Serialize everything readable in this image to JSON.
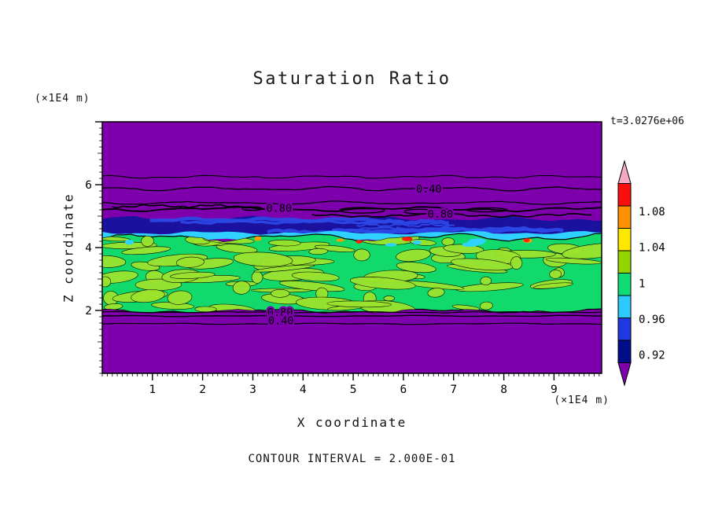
{
  "chart_data": {
    "type": "heatmap",
    "title": "Saturation Ratio",
    "xlabel": "X coordinate",
    "ylabel": "Z coordinate",
    "x_unit_label": "(×1E4 m)",
    "y_unit_label": "(×1E4 m)",
    "time_label": "t=3.0276e+06",
    "footer_label": "CONTOUR INTERVAL = 2.000E-01",
    "x_ticks": [
      "1",
      "2",
      "3",
      "4",
      "5",
      "6",
      "7",
      "8",
      "9"
    ],
    "y_ticks": [
      "2",
      "4",
      "6"
    ],
    "x_range": [
      0,
      9.95
    ],
    "y_range": [
      0,
      8
    ],
    "x_minor_step": 0.1,
    "y_minor_step": 0.2,
    "seed": 20,
    "field": {
      "background": "#7e00ad",
      "navy_band": {
        "y0": 0.386,
        "y1": 0.447,
        "color": "#1a119e"
      },
      "blue_streaks": {
        "color": "#2c49e8",
        "count": 8
      },
      "cyan_band": {
        "y0": 0.441,
        "y1": 0.473,
        "color": "#2ed1ff"
      },
      "green_band": {
        "y0": 0.46,
        "y1": 0.752,
        "color": "#12d96b"
      },
      "blob_color": "#9be32e",
      "blob_count": 90,
      "cyan_blob_count": 6,
      "speck_colors": [
        "#ff2000",
        "#ff9c00"
      ],
      "speck_count": 6,
      "contour_color": "#000000"
    },
    "contours": [
      {
        "y": 0.219,
        "amp": 2.0,
        "w": 1.1
      },
      {
        "y": 0.266,
        "amp": 2.6,
        "w": 1.3
      },
      {
        "y": 0.322,
        "amp": 2.0,
        "w": 1.2
      },
      {
        "y": 0.335,
        "amp": 2.0,
        "w": 1.6,
        "x0": 0.02,
        "x1": 0.3
      },
      {
        "y": 0.347,
        "amp": 3.0,
        "w": 1.8
      },
      {
        "y": 0.372,
        "amp": 2.4,
        "w": 1.6,
        "x0": 0.42,
        "x1": 0.98
      },
      {
        "y": 0.757,
        "amp": 0.8,
        "w": 1.2
      },
      {
        "y": 0.772,
        "amp": 0.8,
        "w": 1.4
      },
      {
        "y": 0.803,
        "amp": 0.8,
        "w": 1.2
      }
    ],
    "loops": [
      {
        "x": 0.52,
        "y": 0.352,
        "rx": 0.045,
        "ry": 0.011
      },
      {
        "x": 0.635,
        "y": 0.357,
        "rx": 0.03,
        "ry": 0.009
      },
      {
        "x": 0.77,
        "y": 0.35,
        "rx": 0.04,
        "ry": 0.008
      },
      {
        "x": 0.3,
        "y": 0.345,
        "rx": 0.02,
        "ry": 0.007
      }
    ],
    "contour_labels": [
      {
        "text": "0.40",
        "x": 0.654,
        "y": 0.268
      },
      {
        "text": "0.80",
        "x": 0.354,
        "y": 0.345
      },
      {
        "text": "0.80",
        "x": 0.677,
        "y": 0.368
      },
      {
        "text": "0.80",
        "x": 0.356,
        "y": 0.76
      },
      {
        "text": "0.40",
        "x": 0.358,
        "y": 0.792
      }
    ],
    "colorbar": {
      "segments": [
        {
          "color": "#f4a9c0",
          "arrow": "up"
        },
        {
          "color": "#fb0f0c"
        },
        {
          "color": "#ff9000"
        },
        {
          "color": "#ffe800"
        },
        {
          "color": "#93d500"
        },
        {
          "color": "#0fdc74"
        },
        {
          "color": "#2ec9ff"
        },
        {
          "color": "#2038e0"
        },
        {
          "color": "#000d8a"
        },
        {
          "color": "#7e00ad",
          "arrow": "down"
        }
      ],
      "labels": [
        {
          "text": "1.08",
          "f": 0.225
        },
        {
          "text": "1.04",
          "f": 0.385
        },
        {
          "text": "1",
          "f": 0.545
        },
        {
          "text": "0.96",
          "f": 0.705
        },
        {
          "text": "0.92",
          "f": 0.865
        }
      ]
    }
  }
}
